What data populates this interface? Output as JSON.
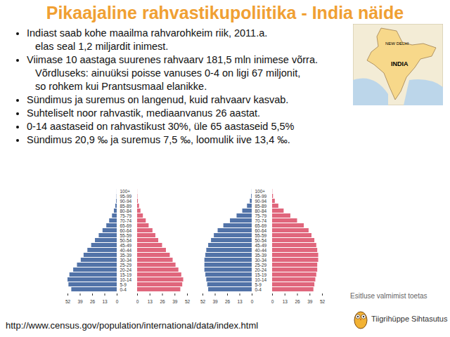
{
  "title": "Pikaajaline rahvastikupoliitika - India näide",
  "bullets": [
    [
      "Indiast saab kohe maailma rahvarohkeim riik, 2011.a.",
      "elas seal 1,2 miljardit inimest."
    ],
    [
      "Viimase 10 aastaga suurenes rahvaarv 181,5 mln inimese võrra.",
      "Võrdluseks: ainuüksi poisse vanuses 0-4 on ligi 67 miljonit,",
      "so rohkem kui Prantsusmaal elanikke."
    ],
    [
      "Sündimus ja suremus on langenud, kuid rahvaarv kasvab."
    ],
    [
      "Suhteliselt noor rahvastik, mediaanvanus 26 aastat."
    ],
    [
      "0-14 aastaseid on rahvastikust 30%, üle 65 aastaseid 5,5%"
    ],
    [
      "Sündimus 20,9 ‰ ja suremus 7,5 ‰, loomulik iive 13,4 ‰."
    ]
  ],
  "map": {
    "labels": [
      "NEW DELHI",
      "INDIA"
    ]
  },
  "footer": {
    "url": "http://www.census.gov/population/international/data/index.html",
    "support": "Esitluse valmimist toetas",
    "organization": "Tiigrihüppe Sihtasutus"
  },
  "chart_data": [
    {
      "type": "bar",
      "orientation": "horizontal",
      "categories": [
        "0-4",
        "5-9",
        "10-14",
        "15-19",
        "20-24",
        "25-29",
        "30-34",
        "35-39",
        "40-44",
        "45-49",
        "50-54",
        "55-59",
        "60-64",
        "65-69",
        "70-74",
        "75-79",
        "80-84",
        "85-89",
        "90-94",
        "95-99",
        "100+"
      ],
      "xlim": [
        0,
        52
      ],
      "xticks": [
        0,
        13,
        26,
        39,
        52
      ],
      "series": [
        {
          "color": "#5273a8",
          "values": [
            48,
            51,
            52,
            50,
            46,
            42,
            38,
            35,
            31,
            27,
            23,
            19,
            15,
            11,
            8,
            5,
            3,
            1.5,
            0.6,
            0.2,
            0.05
          ]
        },
        {
          "color": "#e0667c",
          "values": [
            45,
            47,
            48,
            46,
            43,
            40,
            37,
            34,
            30,
            26,
            22,
            19,
            16,
            12,
            9,
            6,
            3.5,
            2,
            0.8,
            0.3,
            0.08
          ]
        }
      ]
    },
    {
      "type": "bar",
      "orientation": "horizontal",
      "categories": [
        "0-4",
        "5-9",
        "10-14",
        "15-19",
        "20-24",
        "25-29",
        "30-34",
        "35-39",
        "40-44",
        "45-49",
        "50-54",
        "55-59",
        "60-64",
        "65-69",
        "70-74",
        "75-79",
        "80-84",
        "85-89",
        "90-94",
        "95-99",
        "100+"
      ],
      "xlim": [
        0,
        52
      ],
      "xticks": [
        0,
        13,
        26,
        39,
        52
      ],
      "series": [
        {
          "color": "#5273a8",
          "values": [
            46,
            47,
            48,
            49,
            50,
            50,
            50,
            49,
            48,
            46,
            43,
            40,
            36,
            30,
            23,
            16,
            10,
            5,
            2,
            0.6,
            0.1
          ]
        },
        {
          "color": "#e0667c",
          "values": [
            43,
            44,
            45,
            46,
            47,
            47,
            48,
            48,
            47,
            46,
            44,
            41,
            38,
            33,
            26,
            19,
            12,
            6.5,
            2.8,
            0.9,
            0.2
          ]
        }
      ]
    }
  ]
}
